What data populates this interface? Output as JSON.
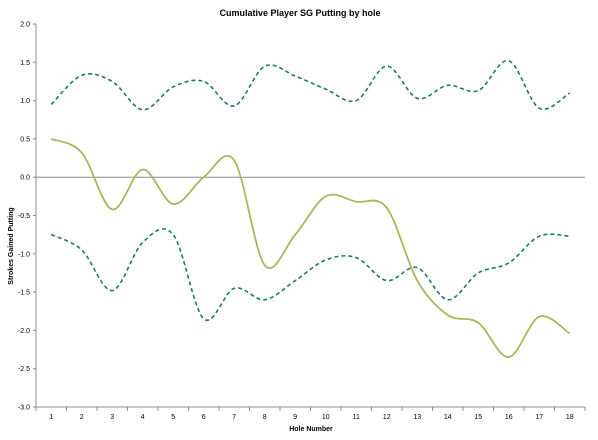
{
  "colors": {
    "band": "#1a7a68",
    "player": "#a8b85a",
    "axis": "#8c8c8c",
    "zero_line": "#8c8c8c",
    "background": "#ffffff"
  },
  "chart_data": {
    "type": "line",
    "title": "Cumulative Player SG Putting by hole",
    "xlabel": "Hole Number",
    "ylabel": "Strokes Gained Putting",
    "x": [
      1,
      2,
      3,
      4,
      5,
      6,
      7,
      8,
      9,
      10,
      11,
      12,
      13,
      14,
      15,
      16,
      17,
      18
    ],
    "xlim": [
      0.5,
      18.5
    ],
    "ylim": [
      -3.0,
      2.0
    ],
    "y_ticks": [
      2.0,
      1.5,
      1.0,
      0.5,
      0.0,
      -0.5,
      -1.0,
      -1.5,
      -2.0,
      -2.5,
      -3.0
    ],
    "y_tick_labels": [
      "2.0",
      "1.5",
      "1.0",
      "0.5",
      "0.0",
      "-0.5",
      "-1.0",
      "-1.5",
      "-2.0",
      "-2.5",
      "-3.0"
    ],
    "x_tick_labels": [
      "1",
      "2",
      "3",
      "4",
      "5",
      "6",
      "7",
      "8",
      "9",
      "10",
      "11",
      "12",
      "13",
      "14",
      "15",
      "16",
      "17",
      "18"
    ],
    "grid": false,
    "legend": "none",
    "series": [
      {
        "values": [
          0.95,
          1.33,
          1.25,
          0.88,
          1.18,
          1.25,
          0.93,
          1.45,
          1.32,
          1.15,
          1.0,
          1.45,
          1.03,
          1.2,
          1.13,
          1.52,
          0.9,
          1.1
        ],
        "style": "dashed",
        "color_key": "band"
      },
      {
        "values": [
          0.5,
          0.32,
          -0.42,
          0.1,
          -0.35,
          0.0,
          0.22,
          -1.15,
          -0.75,
          -0.25,
          -0.32,
          -0.4,
          -1.35,
          -1.8,
          -1.9,
          -2.35,
          -1.82,
          -2.04
        ],
        "style": "solid",
        "color_key": "player"
      },
      {
        "values": [
          -0.75,
          -0.95,
          -1.48,
          -0.85,
          -0.75,
          -1.85,
          -1.45,
          -1.6,
          -1.35,
          -1.08,
          -1.05,
          -1.35,
          -1.18,
          -1.6,
          -1.25,
          -1.12,
          -0.77,
          -0.77
        ],
        "style": "dashed",
        "color_key": "band"
      }
    ]
  }
}
